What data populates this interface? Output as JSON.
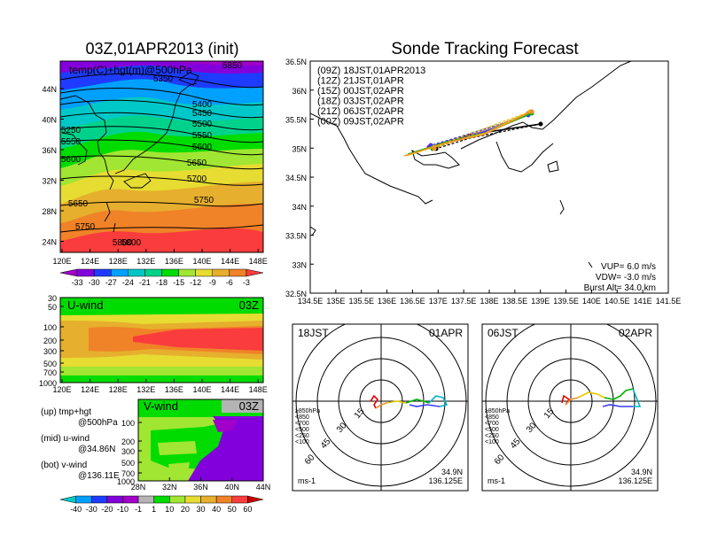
{
  "left_title": "03Z,01APR2013 (init)",
  "right_title": "Sonde Tracking Forecast",
  "panel_upper": {
    "label": "temp(C)+hgt(m)@500hPa",
    "lat_ticks": [
      "44N",
      "40N",
      "36N",
      "32N",
      "28N",
      "24N"
    ],
    "lon_ticks": [
      "120E",
      "124E",
      "128E",
      "132E",
      "136E",
      "140E",
      "144E",
      "148E"
    ],
    "contour_labels": [
      "5350",
      "5400",
      "5450",
      "5500",
      "5550",
      "5600",
      "5650",
      "5700",
      "5750",
      "5800",
      "5850",
      "5250",
      "5550",
      "5600",
      "5650",
      "5750",
      "5800"
    ]
  },
  "temp_colorbar": {
    "labels": [
      "-33",
      "-30",
      "-27",
      "-24",
      "-21",
      "-18",
      "-15",
      "-12",
      "-9",
      "-6",
      "-3"
    ],
    "colors": [
      "#a000c8",
      "#8200dc",
      "#1e3cff",
      "#00a0ff",
      "#00c8c8",
      "#00d28c",
      "#00dc00",
      "#a0e632",
      "#e6dc32",
      "#e6af2d",
      "#f08228",
      "#fa3c3c"
    ]
  },
  "panel_mid": {
    "label": "U-wind",
    "time": "03Z",
    "p_ticks": [
      "30",
      "50",
      "100",
      "200",
      "300",
      "500",
      "700",
      "1000"
    ],
    "lon_ticks": [
      "120E",
      "124E",
      "128E",
      "132E",
      "136E",
      "140E",
      "144E",
      "148E"
    ]
  },
  "panel_bot": {
    "label": "V-wind",
    "time": "03Z",
    "p_ticks": [
      "100",
      "200",
      "300",
      "500",
      "700",
      "1000"
    ],
    "lat_ticks": [
      "28N",
      "32N",
      "36N",
      "40N",
      "44N"
    ]
  },
  "legend_notes": [
    {
      "l1": "(up)  tmp+hgt",
      "l2": "@500hPa"
    },
    {
      "l1": "(mid)  u-wind",
      "l2": "@34.86N"
    },
    {
      "l1": "(bot)  v-wind",
      "l2": "@136.11E"
    }
  ],
  "wind_colorbar": {
    "labels": [
      "-40",
      "-30",
      "-20",
      "-10",
      "-1",
      "1",
      "10",
      "20",
      "30",
      "40",
      "50",
      "60"
    ],
    "colors": [
      "#00c8c8",
      "#00a0ff",
      "#1e3cff",
      "#8200dc",
      "#a000c8",
      "#b4b4b4",
      "#00dc00",
      "#a0e632",
      "#e6dc32",
      "#e6af2d",
      "#f08228",
      "#fa3c3c",
      "#c80000"
    ]
  },
  "track_map": {
    "lat_ticks": [
      "36.5N",
      "36N",
      "35.5N",
      "35N",
      "34.5N",
      "34N",
      "33.5N",
      "33N",
      "32.5N"
    ],
    "lon_ticks": [
      "134.5E",
      "135E",
      "135.5E",
      "136E",
      "136.5E",
      "137E",
      "137.5E",
      "138E",
      "138.5E",
      "139E",
      "139.5E",
      "140E",
      "140.5E",
      "141E",
      "141.5E"
    ],
    "runs": [
      {
        "label": "(09Z)  18JST,01APR2013",
        "color": "#000000"
      },
      {
        "label": "(12Z)  21JST,01APR",
        "color": "#b400c8"
      },
      {
        "label": "(15Z)  00JST,02APR",
        "color": "#3c3cff"
      },
      {
        "label": "(18Z)  03JST,02APR",
        "color": "#00b400"
      },
      {
        "label": "(21Z)  06JST,02APR",
        "color": "#e6c800"
      },
      {
        "label": "(00Z)  09JST,02APR",
        "color": "#f08c28"
      }
    ],
    "vup": "VUP=  6.0  m/s",
    "vdw": "VDW= -3.0  m/s",
    "burst": "Burst Alt=  34.0  km"
  },
  "hodograph_left": {
    "time": "18JST",
    "date": "01APR",
    "ring_labels": [
      "15",
      "30",
      "45",
      "60"
    ],
    "units": "ms-1",
    "lat": "34.9N",
    "lon": "136.125E"
  },
  "hodograph_right": {
    "time": "06JST",
    "date": "02APR",
    "ring_labels": [
      "15",
      "30",
      "45",
      "60"
    ],
    "units": "ms-1",
    "lat": "34.9N",
    "lon": "136.125E"
  },
  "hodo_legend": [
    {
      "label": "≥850hPa",
      "color": "#e60000"
    },
    {
      "label": "<850",
      "color": "#f08c28"
    },
    {
      "label": "<700",
      "color": "#e6c800"
    },
    {
      "label": "<500",
      "color": "#00b400"
    },
    {
      "label": "<250",
      "color": "#00b4c8"
    },
    {
      "label": "<100",
      "color": "#3c3cff"
    }
  ]
}
